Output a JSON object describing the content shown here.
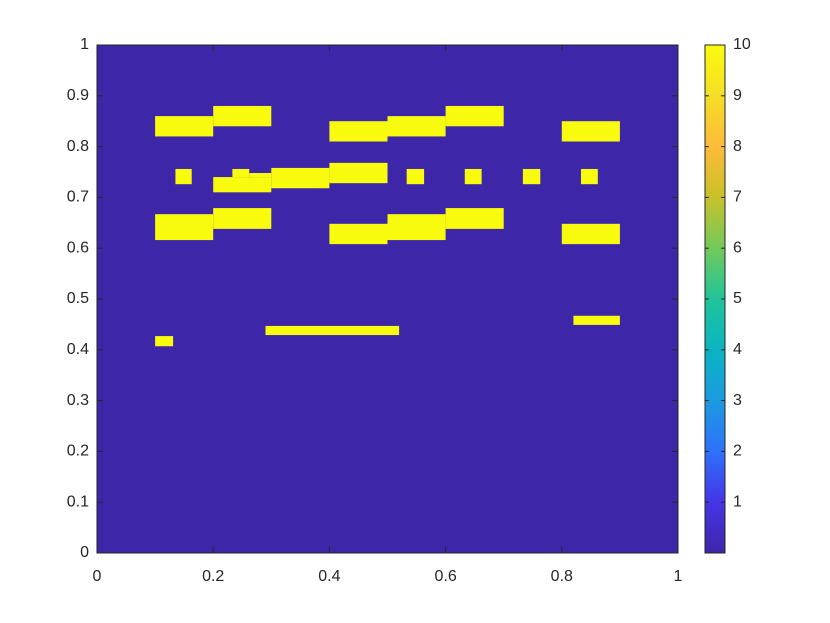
{
  "chart_data": {
    "type": "heatmap",
    "xlim": [
      0,
      1
    ],
    "ylim": [
      0,
      1
    ],
    "xticks": [
      0,
      0.2,
      0.4,
      0.6,
      0.8,
      1
    ],
    "yticks": [
      0,
      0.1,
      0.2,
      0.3,
      0.4,
      0.5,
      0.6,
      0.7,
      0.8,
      0.9,
      1
    ],
    "clim": [
      0,
      10
    ],
    "cticks": [
      1,
      2,
      3,
      4,
      5,
      6,
      7,
      8,
      9,
      10
    ],
    "colormap": [
      "#3e26a8",
      "#4435e6",
      "#2f72fa",
      "#1b9ae0",
      "#0bb4c2",
      "#1fc49a",
      "#72ca5b",
      "#c8c129",
      "#fdbb3a",
      "#f5de24",
      "#f9fb0e"
    ],
    "background": 0,
    "cells": [
      {
        "x": [
          0.1,
          0.2
        ],
        "y": [
          0.82,
          0.86
        ],
        "value": 10
      },
      {
        "x": [
          0.2,
          0.3
        ],
        "y": [
          0.84,
          0.88
        ],
        "value": 10
      },
      {
        "x": [
          0.4,
          0.5
        ],
        "y": [
          0.81,
          0.85
        ],
        "value": 10
      },
      {
        "x": [
          0.5,
          0.6
        ],
        "y": [
          0.82,
          0.86
        ],
        "value": 10
      },
      {
        "x": [
          0.6,
          0.7
        ],
        "y": [
          0.84,
          0.88
        ],
        "value": 10
      },
      {
        "x": [
          0.8,
          0.9
        ],
        "y": [
          0.81,
          0.85
        ],
        "value": 10
      },
      {
        "x": [
          0.135,
          0.163
        ],
        "y": [
          0.726,
          0.756
        ],
        "value": 10
      },
      {
        "x": [
          0.2,
          0.3
        ],
        "y": [
          0.71,
          0.74
        ],
        "value": 10
      },
      {
        "x": [
          0.233,
          0.262
        ],
        "y": [
          0.74,
          0.756
        ],
        "value": 10
      },
      {
        "x": [
          0.262,
          0.3
        ],
        "y": [
          0.74,
          0.748
        ],
        "value": 10
      },
      {
        "x": [
          0.3,
          0.4
        ],
        "y": [
          0.718,
          0.758
        ],
        "value": 10
      },
      {
        "x": [
          0.4,
          0.5
        ],
        "y": [
          0.728,
          0.768
        ],
        "value": 10
      },
      {
        "x": [
          0.533,
          0.563
        ],
        "y": [
          0.726,
          0.756
        ],
        "value": 10
      },
      {
        "x": [
          0.633,
          0.662
        ],
        "y": [
          0.726,
          0.756
        ],
        "value": 10
      },
      {
        "x": [
          0.733,
          0.763
        ],
        "y": [
          0.726,
          0.756
        ],
        "value": 10
      },
      {
        "x": [
          0.833,
          0.862
        ],
        "y": [
          0.726,
          0.756
        ],
        "value": 10
      },
      {
        "x": [
          0.1,
          0.2
        ],
        "y": [
          0.616,
          0.667
        ],
        "value": 10
      },
      {
        "x": [
          0.2,
          0.3
        ],
        "y": [
          0.638,
          0.679
        ],
        "value": 10
      },
      {
        "x": [
          0.4,
          0.5
        ],
        "y": [
          0.608,
          0.648
        ],
        "value": 10
      },
      {
        "x": [
          0.5,
          0.6
        ],
        "y": [
          0.616,
          0.667
        ],
        "value": 10
      },
      {
        "x": [
          0.6,
          0.7
        ],
        "y": [
          0.638,
          0.679
        ],
        "value": 10
      },
      {
        "x": [
          0.8,
          0.9
        ],
        "y": [
          0.608,
          0.648
        ],
        "value": 10
      },
      {
        "x": [
          0.1,
          0.131
        ],
        "y": [
          0.407,
          0.427
        ],
        "value": 10
      },
      {
        "x": [
          0.29,
          0.52
        ],
        "y": [
          0.429,
          0.447
        ],
        "value": 10
      },
      {
        "x": [
          0.82,
          0.9
        ],
        "y": [
          0.449,
          0.467
        ],
        "value": 10
      }
    ]
  }
}
